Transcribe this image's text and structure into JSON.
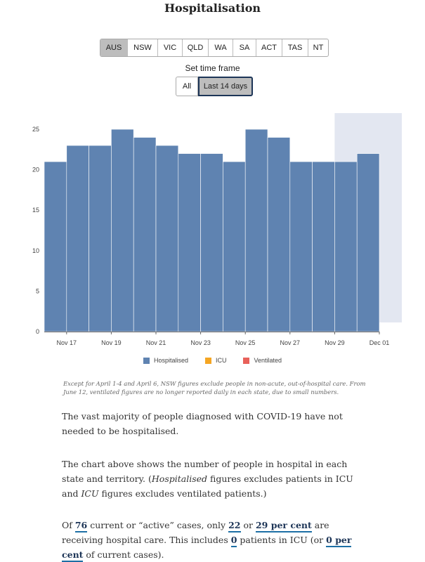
{
  "title": "Hospitalisation",
  "regions": [
    "AUS",
    "NSW",
    "VIC",
    "QLD",
    "WA",
    "SA",
    "ACT",
    "TAS",
    "NT"
  ],
  "active_region": "AUS",
  "timeframe": {
    "label": "Set time frame",
    "options": [
      "All",
      "Last 14 days"
    ],
    "active": "Last 14 days"
  },
  "colors": {
    "hospitalised": "#5f83b1",
    "icu": "#f5a623",
    "ventilated": "#e8615a",
    "shade": "#e3e7f1"
  },
  "chart_data": {
    "type": "bar",
    "x": [
      "Nov 16",
      "Nov 17",
      "Nov 18",
      "Nov 19",
      "Nov 20",
      "Nov 21",
      "Nov 22",
      "Nov 23",
      "Nov 24",
      "Nov 25",
      "Nov 26",
      "Nov 27",
      "Nov 28",
      "Nov 29",
      "Nov 30"
    ],
    "series": [
      {
        "name": "Hospitalised",
        "values": [
          21,
          23,
          23,
          25,
          24,
          23,
          22,
          22,
          21,
          25,
          24,
          21,
          21,
          21,
          22
        ]
      },
      {
        "name": "ICU",
        "values": [
          0,
          0,
          0,
          0,
          0,
          0,
          0,
          0,
          0,
          0,
          0,
          0,
          0,
          0,
          0
        ]
      },
      {
        "name": "Ventilated",
        "values": [
          0,
          0,
          0,
          0,
          0,
          0,
          0,
          0,
          0,
          0,
          0,
          0,
          0,
          0,
          0
        ]
      }
    ],
    "x_tick_labels": [
      "Nov 17",
      "Nov 19",
      "Nov 21",
      "Nov 23",
      "Nov 25",
      "Nov 27",
      "Nov 29",
      "Dec 01"
    ],
    "y_ticks": [
      0,
      5,
      10,
      15,
      20,
      25
    ],
    "ylim": [
      0,
      27
    ],
    "shaded_period": [
      "Nov 29",
      "Dec 01"
    ],
    "legend": [
      "Hospitalised",
      "ICU",
      "Ventilated"
    ],
    "legend_position": "bottom"
  },
  "note": "Except for April 1-4 and April 6, NSW figures exclude people in non-acute, out-of-hospital care. From June 12, ventilated figures are no longer reported daily in each state, due to small numbers.",
  "para1": "The vast majority of people diagnosed with COVID-19 have not needed to be hospitalised.",
  "para2": {
    "a": "The chart above shows the number of people in hospital in each state and territory. (",
    "b": "Hospitalised",
    "c": " figures excludes patients in ICU and ",
    "d": "ICU",
    "e": " figures excludes ventilated patients.)"
  },
  "para3": {
    "a": "Of ",
    "active_cases": "76",
    "b": " current or “active” cases, only ",
    "hospital_count": "22",
    "c": " or ",
    "hospital_pct": "29 per cent",
    "d": " are receiving hospital care. This includes ",
    "icu_count": "0",
    "e": " patients in ICU (or ",
    "icu_pct": "0 per cent",
    "f": " of current cases)."
  }
}
